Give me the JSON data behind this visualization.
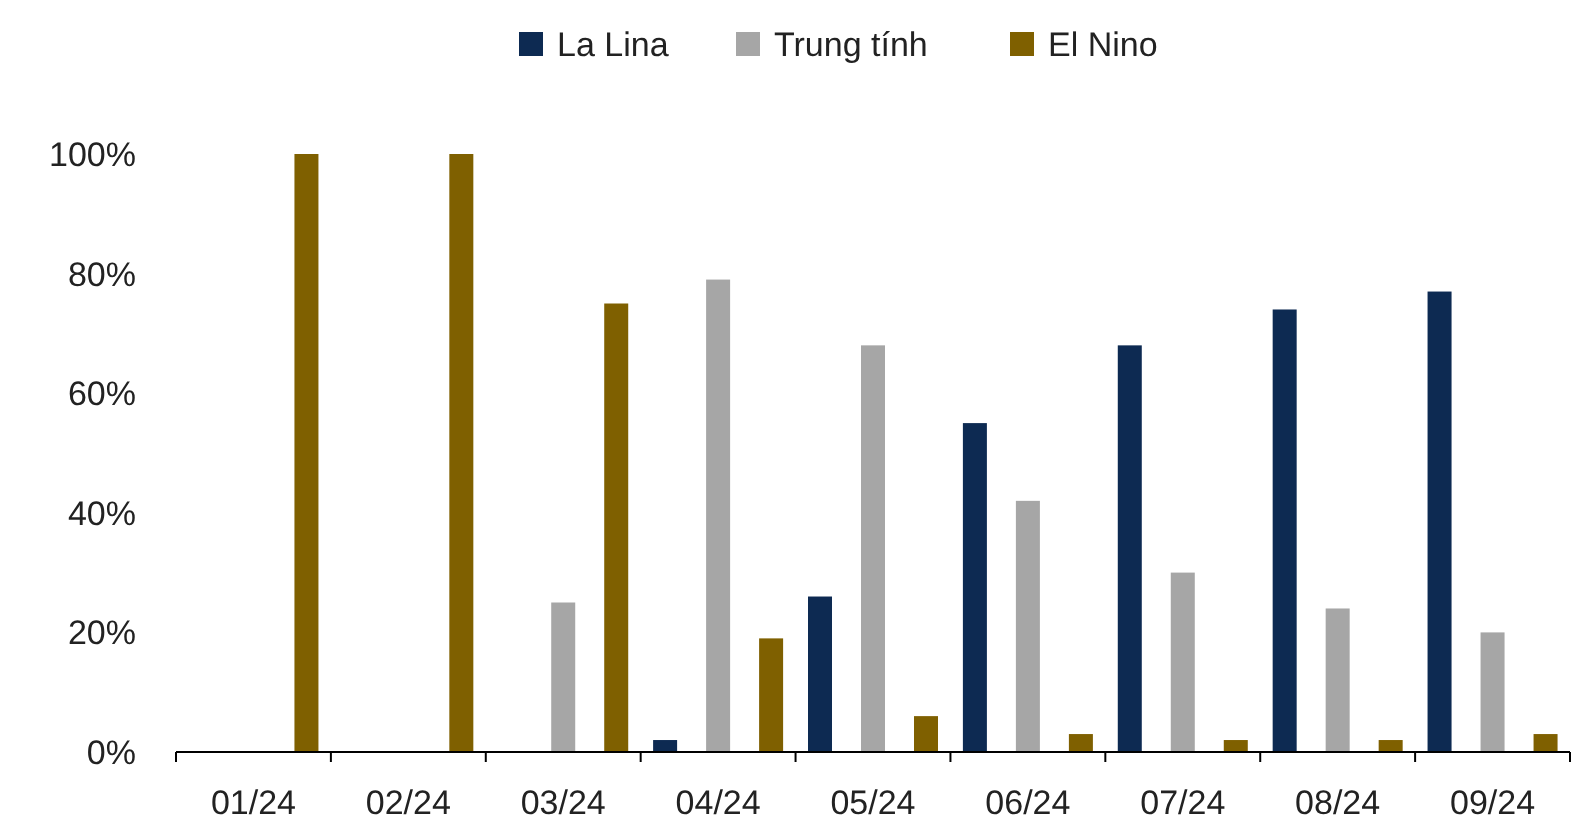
{
  "chart_data": {
    "type": "bar",
    "categories": [
      "01/24",
      "02/24",
      "03/24",
      "04/24",
      "05/24",
      "06/24",
      "07/24",
      "08/24",
      "09/24"
    ],
    "series": [
      {
        "name": "La Lina",
        "color": "#0d2a52",
        "values": [
          0,
          0,
          0,
          2,
          26,
          55,
          68,
          74,
          77
        ]
      },
      {
        "name": "Trung tính",
        "color": "#a6a6a6",
        "values": [
          0,
          0,
          25,
          79,
          68,
          42,
          30,
          24,
          20
        ]
      },
      {
        "name": "El Nino",
        "color": "#7f6000",
        "values": [
          100,
          100,
          75,
          19,
          6,
          3,
          2,
          2,
          3
        ]
      }
    ],
    "ylim": [
      0,
      100
    ],
    "yticks": [
      {
        "value": 0,
        "label": "0%"
      },
      {
        "value": 20,
        "label": "20%"
      },
      {
        "value": 40,
        "label": "40%"
      },
      {
        "value": 60,
        "label": "60%"
      },
      {
        "value": 80,
        "label": "80%"
      },
      {
        "value": 100,
        "label": "100%"
      }
    ],
    "grid": false,
    "legend": "top"
  }
}
